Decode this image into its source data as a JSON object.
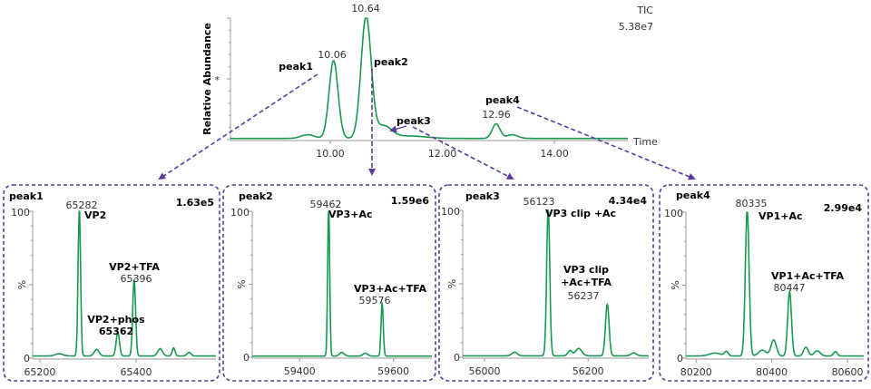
{
  "colors": {
    "trace": "#1a9850",
    "arrow": "#5b3a9e",
    "box": "#5b3a9e",
    "axis": "#999999"
  },
  "chart_data": [
    {
      "type": "line",
      "id": "tic",
      "ylabel": "Relative Abundance",
      "xlabel": "Time",
      "label_top": "TIC",
      "intensity": "5.38e7",
      "xlim": [
        8.22,
        15.31
      ],
      "ylim": [
        0,
        1
      ],
      "xticks": [
        "10.00",
        "12.00",
        "14.00"
      ],
      "xtick_values": [
        10,
        12,
        14
      ],
      "ytick_label": "*",
      "peaks": [
        {
          "x": 9.6,
          "y": 0.03,
          "w": 0.12
        },
        {
          "x": 10.06,
          "y": 0.64,
          "w": 0.08
        },
        {
          "x": 10.64,
          "y": 1.0,
          "w": 0.09
        },
        {
          "x": 10.95,
          "y": 0.1,
          "w": 0.14
        },
        {
          "x": 11.4,
          "y": 0.02,
          "w": 0.3
        },
        {
          "x": 12.96,
          "y": 0.12,
          "w": 0.07
        },
        {
          "x": 13.25,
          "y": 0.03,
          "w": 0.1
        }
      ],
      "baseline": 0.01,
      "annotations": [
        {
          "text": "10.64",
          "bold": false
        },
        {
          "text": "10.06",
          "bold": false
        },
        {
          "text": "12.96",
          "bold": false
        },
        {
          "text": "peak1",
          "bold": true
        },
        {
          "text": "peak2",
          "bold": true
        },
        {
          "text": "peak3",
          "bold": true
        },
        {
          "text": "peak4",
          "bold": true
        }
      ]
    },
    {
      "type": "line",
      "id": "peak1",
      "title": "peak1",
      "intensity": "1.63e5",
      "ylabel": "%",
      "xlim": [
        65185,
        65566
      ],
      "ylim": [
        0,
        100
      ],
      "yticks": [
        "100",
        "0"
      ],
      "xticks": [
        "65200",
        "65400"
      ],
      "xtick_values": [
        65200,
        65400
      ],
      "baseline": 1.5,
      "peaks": [
        {
          "x": 65240,
          "y": 1.5,
          "w": 8
        },
        {
          "x": 65282,
          "y": 100,
          "w": 2.6
        },
        {
          "x": 65318,
          "y": 4.5,
          "w": 5
        },
        {
          "x": 65362,
          "y": 16,
          "w": 3.5
        },
        {
          "x": 65396,
          "y": 52,
          "w": 3
        },
        {
          "x": 65450,
          "y": 5,
          "w": 5
        },
        {
          "x": 65478,
          "y": 5.5,
          "w": 3
        },
        {
          "x": 65510,
          "y": 2.5,
          "w": 4
        }
      ],
      "annotations": [
        {
          "text": "65282",
          "bold": false
        },
        {
          "text": "VP2",
          "bold": true
        },
        {
          "text": "VP2+TFA",
          "bold": true
        },
        {
          "text": "65396",
          "bold": false
        },
        {
          "text": "VP2+phos",
          "bold": true
        },
        {
          "text": "65362",
          "bold": true
        }
      ]
    },
    {
      "type": "line",
      "id": "peak2",
      "title": "peak2",
      "intensity": "1.59e6",
      "ylabel": "%",
      "xlim": [
        59299,
        59682
      ],
      "ylim": [
        0,
        100
      ],
      "yticks": [
        "100",
        "0"
      ],
      "xticks": [
        "59400",
        "59600"
      ],
      "xtick_values": [
        59400,
        59600
      ],
      "baseline": 0.8,
      "peaks": [
        {
          "x": 59462,
          "y": 100,
          "w": 2.2
        },
        {
          "x": 59490,
          "y": 2.5,
          "w": 5
        },
        {
          "x": 59540,
          "y": 2,
          "w": 5
        },
        {
          "x": 59576,
          "y": 36,
          "w": 2.4
        }
      ],
      "annotations": [
        {
          "text": "59462",
          "bold": false
        },
        {
          "text": "VP3+Ac",
          "bold": true
        },
        {
          "text": "VP3+Ac+TFA",
          "bold": true
        },
        {
          "text": "59576",
          "bold": false
        }
      ]
    },
    {
      "type": "line",
      "id": "peak3",
      "title": "peak3",
      "intensity": "4.34e4",
      "ylabel": "%",
      "xlim": [
        55958,
        56317
      ],
      "ylim": [
        0,
        100
      ],
      "yticks": [
        "100",
        "0"
      ],
      "xticks": [
        "56000",
        "56200"
      ],
      "xtick_values": [
        56000,
        56200
      ],
      "baseline": 1,
      "peaks": [
        {
          "x": 56058,
          "y": 2.5,
          "w": 5
        },
        {
          "x": 56123,
          "y": 100,
          "w": 3
        },
        {
          "x": 56165,
          "y": 3.5,
          "w": 4
        },
        {
          "x": 56182,
          "y": 5,
          "w": 6
        },
        {
          "x": 56237,
          "y": 35,
          "w": 3.5
        },
        {
          "x": 56288,
          "y": 2,
          "w": 5
        }
      ],
      "annotations": [
        {
          "text": "56123",
          "bold": false
        },
        {
          "text": "VP3 clip +Ac",
          "bold": true
        },
        {
          "text": "VP3 clip",
          "bold": true
        },
        {
          "text": "+Ac+TFA",
          "bold": true
        },
        {
          "text": "56237",
          "bold": false
        }
      ]
    },
    {
      "type": "line",
      "id": "peak4",
      "title": "peak4",
      "intensity": "2.99e4",
      "ylabel": "%",
      "xlim": [
        80173,
        80643
      ],
      "ylim": [
        0,
        100
      ],
      "yticks": [
        "100",
        "0"
      ],
      "xticks": [
        "80200",
        "80400",
        "80600"
      ],
      "xtick_values": [
        80200,
        80400,
        80600
      ],
      "baseline": 1.5,
      "peaks": [
        {
          "x": 80250,
          "y": 2,
          "w": 15
        },
        {
          "x": 80280,
          "y": 3,
          "w": 5
        },
        {
          "x": 80335,
          "y": 100,
          "w": 5
        },
        {
          "x": 80375,
          "y": 4,
          "w": 10
        },
        {
          "x": 80405,
          "y": 11,
          "w": 7
        },
        {
          "x": 80447,
          "y": 44,
          "w": 5
        },
        {
          "x": 80490,
          "y": 6,
          "w": 6
        },
        {
          "x": 80520,
          "y": 3.5,
          "w": 8
        },
        {
          "x": 80568,
          "y": 3,
          "w": 5
        }
      ],
      "annotations": [
        {
          "text": "80335",
          "bold": false
        },
        {
          "text": "VP1+Ac",
          "bold": true
        },
        {
          "text": "VP1+Ac+TFA",
          "bold": true
        },
        {
          "text": "80447",
          "bold": false
        }
      ]
    }
  ]
}
